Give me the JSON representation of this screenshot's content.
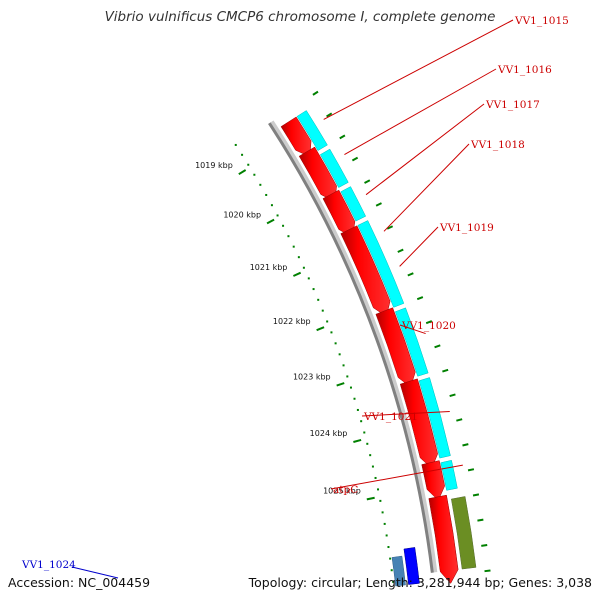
{
  "title": "Vibrio vulnificus CMCP6 chromosome I, complete genome",
  "footer": {
    "accession": "Accession: NC_004459",
    "stats": "Topology: circular; Length: 3,281,944 bp; Genes: 3,038"
  },
  "scale_labels": [
    "1019 kbp",
    "1020 kbp",
    "1021 kbp",
    "1022 kbp",
    "1023 kbp",
    "1024 kbp",
    "1025 kbp"
  ],
  "gene_labels": [
    "VV1_1015",
    "VV1_1016",
    "VV1_1017",
    "VV1_1018",
    "VV1_1019",
    "VV1_1020",
    "VV1_1021",
    "atpC",
    "VV1_1024"
  ],
  "colors": {
    "cds_forward": "#ff0000",
    "cds_reverse": "#ff0000",
    "orf_track": "#00ffff",
    "trna_track": "#6b8e23",
    "blast_track": "#0000ff",
    "tick_color": "#008000",
    "backbone": "#808080",
    "forward_label_color": "#cc0000",
    "reverse_label_color": "#0000cc"
  }
}
